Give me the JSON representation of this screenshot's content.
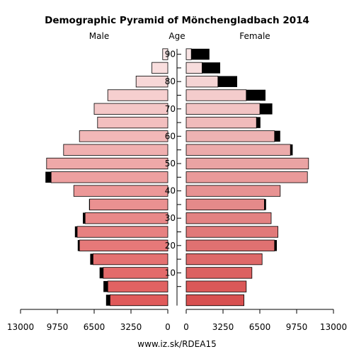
{
  "chart_data": {
    "type": "bar",
    "orientation": "horizontal-population-pyramid",
    "title": "Demographic Pyramid of Mönchengladbach 2014",
    "left_label": "Male",
    "center_label": "Age",
    "right_label": "Female",
    "footer": "www.iz.sk/RDEA15",
    "x_range": [
      0,
      13000
    ],
    "x_ticks_left": [
      "13000",
      "9750",
      "6500",
      "3250",
      "0"
    ],
    "x_ticks_right": [
      "0",
      "3250",
      "6500",
      "9750",
      "13000"
    ],
    "age_ticks": [
      "10",
      "20",
      "30",
      "40",
      "50",
      "60",
      "70",
      "80",
      "90"
    ],
    "categories": [
      "0-4",
      "5-9",
      "10-14",
      "15-19",
      "20-24",
      "25-29",
      "30-34",
      "35-39",
      "40-44",
      "45-49",
      "50-54",
      "55-59",
      "60-64",
      "65-69",
      "70-74",
      "75-79",
      "80-84",
      "85-89",
      "90+"
    ],
    "series": [
      {
        "side": "male",
        "color": "#e05a5a",
        "base": [
          5100,
          5300,
          5700,
          6600,
          7800,
          8000,
          7300,
          6900,
          8300,
          10300,
          10700,
          9200,
          7800,
          6200,
          6500,
          5300,
          2800,
          1400,
          450
        ],
        "extra": [
          350,
          380,
          320,
          250,
          150,
          200,
          200,
          50,
          0,
          500,
          0,
          0,
          0,
          0,
          0,
          0,
          0,
          0,
          0
        ]
      },
      {
        "side": "female",
        "color": "#d85050",
        "base": [
          5100,
          5300,
          5800,
          6700,
          7800,
          8100,
          7500,
          6900,
          8300,
          10700,
          10800,
          9200,
          7800,
          6200,
          6500,
          5300,
          2800,
          1400,
          450
        ],
        "extra": [
          0,
          0,
          0,
          0,
          200,
          0,
          0,
          150,
          0,
          0,
          0,
          200,
          500,
          350,
          1100,
          1700,
          1700,
          1600,
          1600
        ]
      }
    ]
  }
}
